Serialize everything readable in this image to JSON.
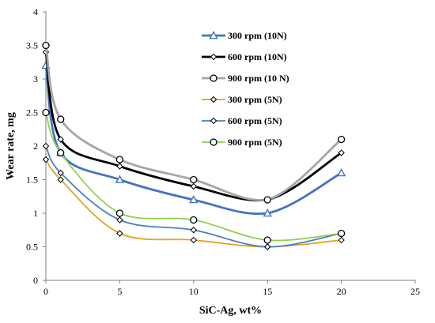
{
  "chart_data": {
    "type": "line",
    "xlabel": "SiC-Ag, wt%",
    "ylabel": "Wear rate, mg",
    "xlim": [
      0,
      25
    ],
    "ylim": [
      0,
      4
    ],
    "xticks": [
      0,
      5,
      10,
      15,
      20,
      25
    ],
    "yticks": [
      0,
      0.5,
      1,
      1.5,
      2,
      2.5,
      3,
      3.5,
      4
    ],
    "xtick_labels": [
      "0",
      "5",
      "10",
      "15",
      "20",
      "25"
    ],
    "ytick_labels": [
      "0",
      "0.5",
      "1",
      "1.5",
      "2",
      "2.5",
      "3",
      "3.5",
      "4"
    ],
    "x": [
      0,
      1,
      5,
      10,
      15,
      20
    ],
    "grid": false,
    "legend_position": "top-right",
    "series": [
      {
        "name": "300 rpm (10N)",
        "values": [
          3.2,
          1.9,
          1.5,
          1.2,
          1.0,
          1.6
        ],
        "color": "#4472c4",
        "marker": "triangle"
      },
      {
        "name": "600 rpm (10N)",
        "values": [
          3.4,
          2.1,
          1.7,
          1.4,
          1.2,
          1.9
        ],
        "color": "#000000",
        "marker": "diamond"
      },
      {
        "name": "900 rpm (10 N)",
        "values": [
          3.5,
          2.4,
          1.8,
          1.5,
          1.2,
          2.1
        ],
        "color": "#a5a5a5",
        "marker": "circle"
      },
      {
        "name": "300 rpm (5N)",
        "values": [
          1.8,
          1.5,
          0.7,
          0.6,
          0.5,
          0.6
        ],
        "color": "#e5a21b",
        "marker": "diamond"
      },
      {
        "name": "600 rpm (5N)",
        "values": [
          2.0,
          1.6,
          0.9,
          0.75,
          0.5,
          0.7
        ],
        "color": "#4a7fc1",
        "marker": "diamond"
      },
      {
        "name": "900 rpm (5N)",
        "values": [
          2.5,
          1.9,
          1.0,
          0.9,
          0.6,
          0.7
        ],
        "color": "#8fd14f",
        "marker": "circle"
      }
    ]
  }
}
